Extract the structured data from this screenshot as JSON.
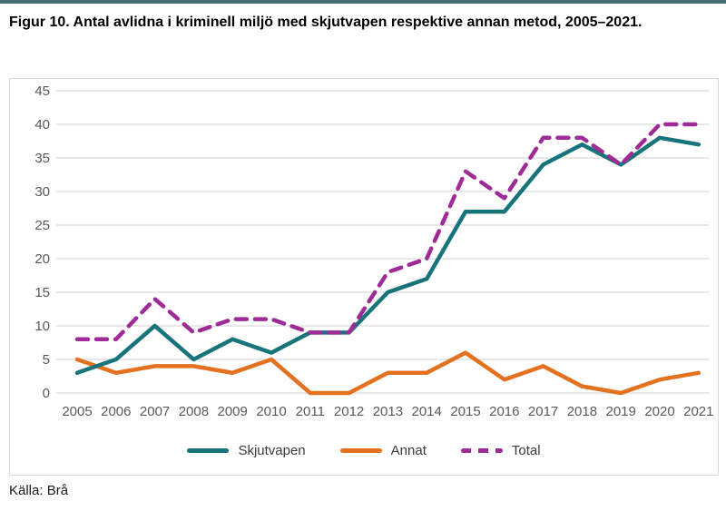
{
  "page": {
    "title": "Figur 10. Antal avlidna i kriminell miljö med skjutvapen respektive annan metod, 2005–2021.",
    "source": "Källa: Brå"
  },
  "colors": {
    "accent_bar": "#436e75",
    "frame_border": "#d9d9d9",
    "gridline": "#d9d9d9",
    "axis_text": "#595959",
    "legend_text": "#3a3a3a"
  },
  "chart_data": {
    "type": "line",
    "title": "Figur 10. Antal avlidna i kriminell miljö med skjutvapen respektive annan metod, 2005–2021.",
    "categories": [
      "2005",
      "2006",
      "2007",
      "2008",
      "2009",
      "2010",
      "2011",
      "2012",
      "2013",
      "2014",
      "2015",
      "2016",
      "2017",
      "2018",
      "2019",
      "2020",
      "2021"
    ],
    "series": [
      {
        "name": "Skjutvapen",
        "color": "#17747b",
        "dash": false,
        "values": [
          3,
          5,
          10,
          5,
          8,
          6,
          9,
          9,
          15,
          17,
          27,
          27,
          34,
          37,
          34,
          38,
          37
        ]
      },
      {
        "name": "Annat",
        "color": "#e3711d",
        "dash": false,
        "values": [
          5,
          3,
          4,
          4,
          3,
          5,
          0,
          0,
          3,
          3,
          6,
          2,
          4,
          1,
          0,
          2,
          3
        ]
      },
      {
        "name": "Total",
        "color": "#9e2b96",
        "dash": true,
        "values": [
          8,
          8,
          14,
          9,
          11,
          11,
          9,
          9,
          18,
          20,
          33,
          29,
          38,
          38,
          34,
          40,
          40
        ]
      }
    ],
    "xlabel": "",
    "ylabel": "",
    "ylim": [
      0,
      45
    ],
    "yticks": [
      0,
      5,
      10,
      15,
      20,
      25,
      30,
      35,
      40,
      45
    ],
    "grid": true,
    "legend_position": "bottom"
  }
}
